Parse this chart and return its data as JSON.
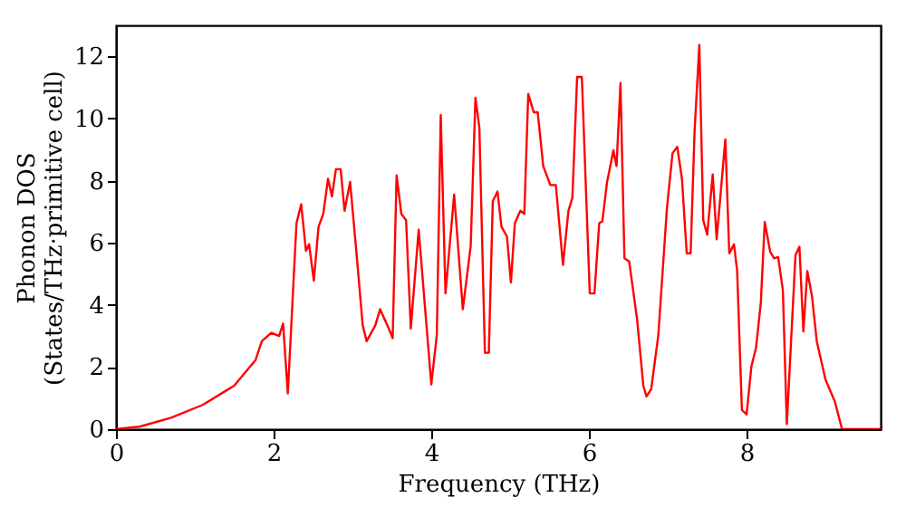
{
  "chart_data": {
    "type": "line",
    "xlabel": "Frequency (THz)",
    "ylabel": "Phonon DOS\n(States/THz·primitive cell)",
    "xlim": [
      0,
      9.7
    ],
    "ylim": [
      0,
      13
    ],
    "xticks": [
      0,
      2,
      4,
      6,
      8
    ],
    "yticks": [
      0,
      2,
      4,
      6,
      8,
      10,
      12
    ],
    "grid": false,
    "legend": false,
    "marker": "none",
    "line_style": "solid",
    "series": [
      {
        "color": "#ff0000",
        "x": [
          0,
          0.3,
          0.7,
          1.1,
          1.5,
          1.77,
          1.85,
          1.97,
          2.07,
          2.12,
          2.18,
          2.29,
          2.35,
          2.41,
          2.45,
          2.51,
          2.57,
          2.63,
          2.69,
          2.74,
          2.79,
          2.85,
          2.9,
          2.97,
          3.05,
          3.13,
          3.18,
          3.29,
          3.35,
          3.45,
          3.51,
          3.56,
          3.62,
          3.68,
          3.74,
          3.84,
          4.0,
          4.07,
          4.12,
          4.18,
          4.29,
          4.4,
          4.5,
          4.56,
          4.61,
          4.68,
          4.73,
          4.78,
          4.84,
          4.89,
          4.96,
          5.01,
          5.06,
          5.13,
          5.18,
          5.23,
          5.3,
          5.35,
          5.42,
          5.51,
          5.58,
          5.67,
          5.74,
          5.79,
          5.85,
          5.91,
          6.01,
          6.07,
          6.13,
          6.17,
          6.23,
          6.31,
          6.35,
          6.4,
          6.45,
          6.51,
          6.61,
          6.69,
          6.73,
          6.79,
          6.88,
          6.99,
          7.06,
          7.12,
          7.18,
          7.24,
          7.29,
          7.34,
          7.4,
          7.45,
          7.5,
          7.57,
          7.62,
          7.73,
          7.78,
          7.84,
          7.88,
          7.94,
          8.0,
          8.06,
          8.12,
          8.18,
          8.23,
          8.3,
          8.35,
          8.4,
          8.46,
          8.51,
          8.62,
          8.67,
          8.72,
          8.77,
          8.83,
          8.89,
          9.0,
          9.12,
          9.21,
          9.7
        ],
        "values": [
          0,
          0.08,
          0.37,
          0.78,
          1.4,
          2.22,
          2.83,
          3.1,
          3.0,
          3.4,
          1.15,
          6.63,
          7.24,
          5.74,
          5.95,
          4.78,
          6.52,
          6.93,
          8.06,
          7.49,
          8.37,
          8.37,
          7.03,
          7.96,
          5.7,
          3.34,
          2.83,
          3.34,
          3.86,
          3.3,
          2.93,
          8.17,
          6.93,
          6.73,
          3.24,
          6.42,
          1.44,
          3.03,
          10.11,
          4.37,
          7.55,
          3.86,
          5.9,
          10.67,
          9.7,
          2.46,
          2.46,
          7.34,
          7.65,
          6.52,
          6.2,
          4.72,
          6.63,
          7.03,
          6.93,
          10.79,
          10.2,
          10.2,
          8.47,
          7.86,
          7.86,
          5.29,
          7.03,
          7.45,
          11.34,
          11.34,
          4.37,
          4.37,
          6.63,
          6.69,
          7.96,
          8.98,
          8.47,
          11.14,
          5.5,
          5.4,
          3.55,
          1.4,
          1.05,
          1.29,
          3.03,
          7.14,
          8.88,
          9.09,
          8.06,
          5.66,
          5.66,
          9.6,
          12.37,
          6.73,
          6.26,
          8.2,
          6.11,
          9.33,
          5.66,
          5.95,
          5.09,
          0.62,
          0.47,
          2.01,
          2.63,
          4.06,
          6.67,
          5.7,
          5.5,
          5.54,
          4.47,
          0.16,
          5.6,
          5.87,
          3.14,
          5.09,
          4.27,
          2.83,
          1.6,
          0.88,
          0,
          0
        ]
      }
    ]
  }
}
